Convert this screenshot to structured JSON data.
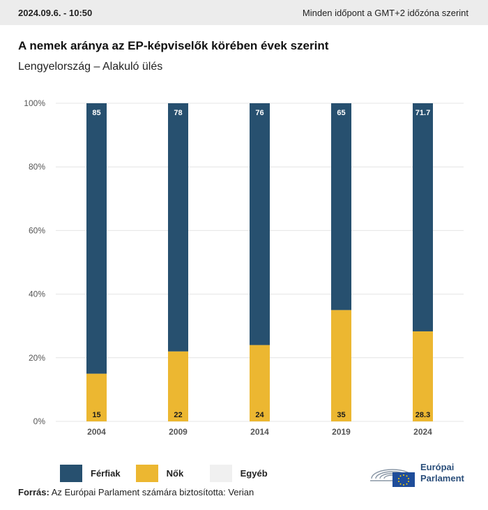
{
  "header": {
    "date": "2024.09.6. - 10:50",
    "timezone_note": "Minden időpont a GMT+2 időzóna szerint"
  },
  "title": "A nemek aránya az EP-képviselők körében évek szerint",
  "subtitle": "Lengyelország – Alakuló ülés",
  "colors": {
    "ferfiak": "#27506f",
    "nok": "#ecb731",
    "egyeb": "#f0f0f0",
    "grid": "#e4e4e4",
    "axis_text": "#555555"
  },
  "chart_data": {
    "type": "bar",
    "stacked": true,
    "categories": [
      "2004",
      "2009",
      "2014",
      "2019",
      "2024"
    ],
    "series": [
      {
        "name": "Nők",
        "values": [
          15,
          22,
          24,
          35,
          28.3
        ],
        "labels": [
          "15",
          "22",
          "24",
          "35",
          "28.3"
        ]
      },
      {
        "name": "Férfiak",
        "values": [
          85,
          78,
          76,
          65,
          71.7
        ],
        "labels": [
          "85",
          "78",
          "76",
          "65",
          "71.7"
        ]
      },
      {
        "name": "Egyéb",
        "values": [
          0,
          0,
          0,
          0,
          0
        ]
      }
    ],
    "ylim": [
      0,
      100
    ],
    "yticks": [
      "0%",
      "20%",
      "40%",
      "60%",
      "80%",
      "100%"
    ],
    "grid": true,
    "legend_position": "bottom-left"
  },
  "legend": [
    {
      "label": "Férfiak",
      "color": "#27506f"
    },
    {
      "label": "Nők",
      "color": "#ecb731"
    },
    {
      "label": "Egyéb",
      "color": "#f0f0f0"
    }
  ],
  "source": {
    "prefix": "Forrás:",
    "text": "Az Európai Parlament számára biztosította: Verian"
  },
  "logo": {
    "line1": "Európai",
    "line2": "Parlament"
  }
}
